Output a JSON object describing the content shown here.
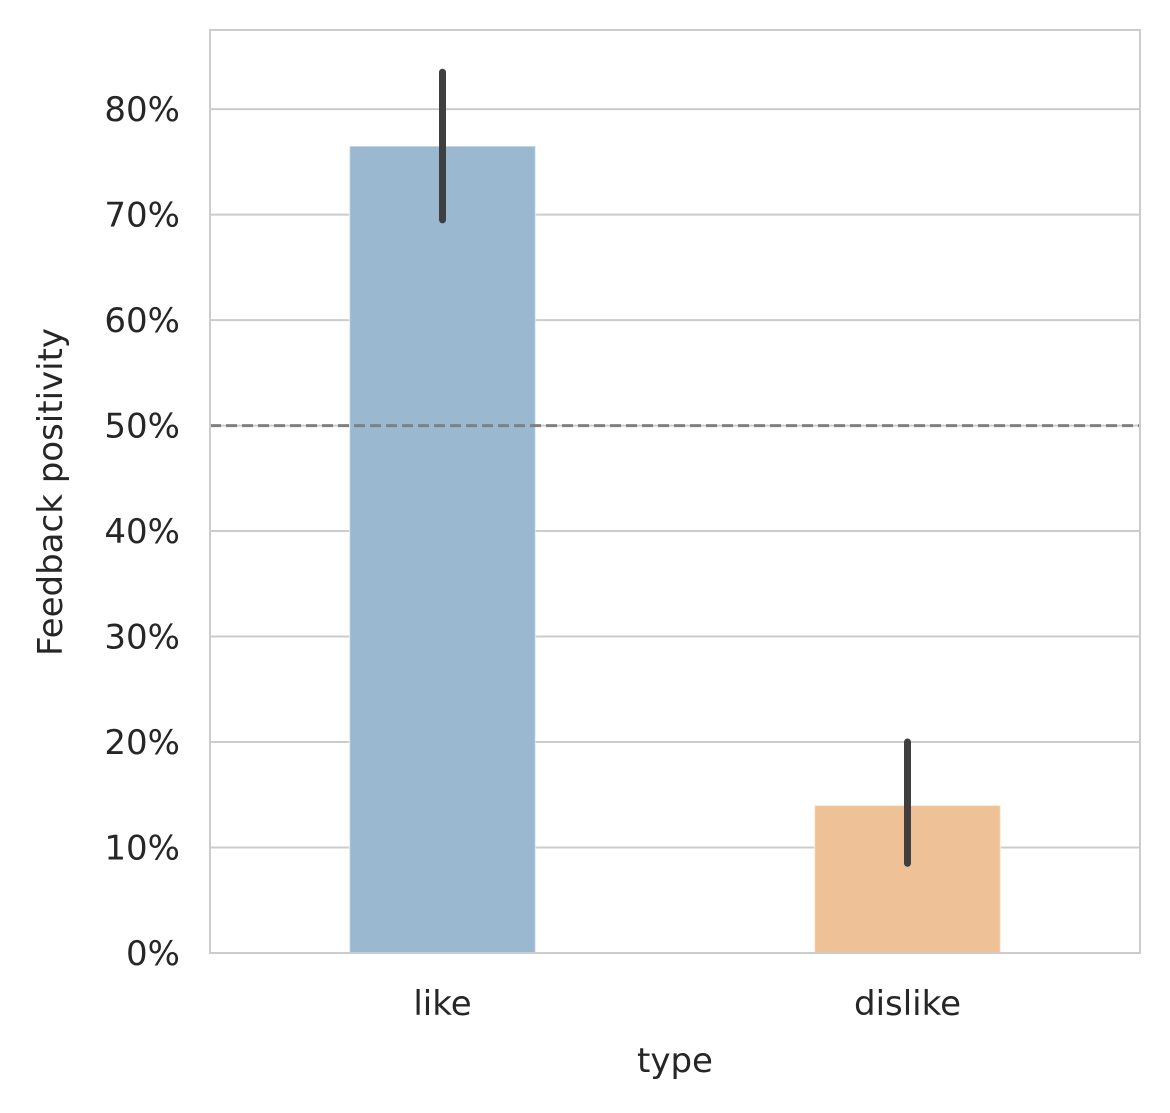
{
  "chart_data": {
    "type": "bar",
    "categories": [
      "like",
      "dislike"
    ],
    "values": [
      76.5,
      14.0
    ],
    "error_bars": [
      {
        "low": 69.5,
        "high": 83.5
      },
      {
        "low": 8.5,
        "high": 20.0
      }
    ],
    "xlabel": "type",
    "ylabel": "Feedback positivity",
    "ylim": [
      0,
      87.5
    ],
    "yticks": [
      0,
      10,
      20,
      30,
      40,
      50,
      60,
      70,
      80
    ],
    "ytick_labels": [
      "0%",
      "10%",
      "20%",
      "30%",
      "40%",
      "50%",
      "60%",
      "70%",
      "80%"
    ],
    "reference_line": {
      "y": 50,
      "style": "dashed",
      "color": "#808080"
    },
    "grid": "horizontal",
    "colors": {
      "bars": [
        "#9ab8cf",
        "#efc196"
      ],
      "error_bar": "#3f3f3f",
      "grid": "#cccccc",
      "spine": "#cccccc"
    }
  }
}
